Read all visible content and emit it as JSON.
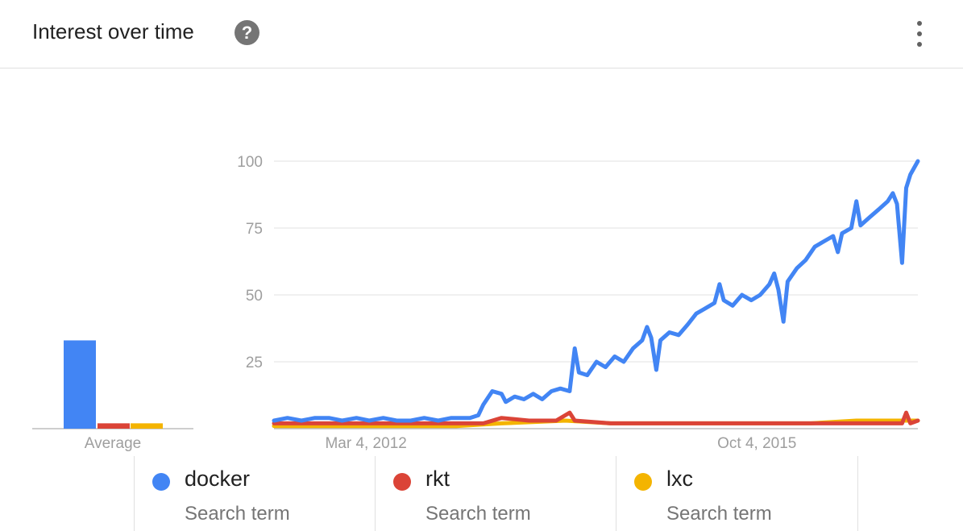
{
  "header": {
    "title": "Interest over time",
    "help_label": "?"
  },
  "colors": {
    "docker": "#4285f4",
    "rkt": "#db4437",
    "lxc": "#f4b400",
    "gridline": "#e0e0e0",
    "tick_text": "#9e9e9e"
  },
  "icons": {
    "help": "help-icon",
    "more": "more-vert-icon"
  },
  "legend": [
    {
      "name": "docker",
      "subtitle": "Search term",
      "color": "#4285f4"
    },
    {
      "name": "rkt",
      "subtitle": "Search term",
      "color": "#db4437"
    },
    {
      "name": "lxc",
      "subtitle": "Search term",
      "color": "#f4b400"
    }
  ],
  "chart_data": [
    {
      "type": "bar",
      "xlabel": "Average",
      "categories": [
        "docker",
        "rkt",
        "lxc"
      ],
      "values": [
        33,
        2,
        2
      ]
    },
    {
      "type": "line",
      "x_range": [
        "2011-05-01",
        "2017-03-26"
      ],
      "x_tick_labels": [
        "Mar 4, 2012",
        "Oct 4, 2015"
      ],
      "x_tick_dates": [
        "2012-03-04",
        "2015-10-04"
      ],
      "ylim": [
        0,
        100
      ],
      "y_ticks": [
        25,
        50,
        75,
        100
      ],
      "grid": true,
      "series": [
        {
          "name": "docker",
          "points": [
            [
              "2011-05-01",
              3
            ],
            [
              "2011-06-15",
              4
            ],
            [
              "2011-08-01",
              3
            ],
            [
              "2011-09-15",
              4
            ],
            [
              "2011-11-01",
              4
            ],
            [
              "2011-12-15",
              3
            ],
            [
              "2012-02-01",
              4
            ],
            [
              "2012-03-15",
              3
            ],
            [
              "2012-05-01",
              4
            ],
            [
              "2012-06-15",
              3
            ],
            [
              "2012-08-01",
              3
            ],
            [
              "2012-09-15",
              4
            ],
            [
              "2012-11-01",
              3
            ],
            [
              "2012-12-15",
              4
            ],
            [
              "2013-01-15",
              4
            ],
            [
              "2013-02-15",
              4
            ],
            [
              "2013-03-15",
              5
            ],
            [
              "2013-04-01",
              9
            ],
            [
              "2013-05-01",
              14
            ],
            [
              "2013-06-01",
              13
            ],
            [
              "2013-06-15",
              10
            ],
            [
              "2013-07-15",
              12
            ],
            [
              "2013-08-15",
              11
            ],
            [
              "2013-09-15",
              13
            ],
            [
              "2013-10-15",
              11
            ],
            [
              "2013-11-15",
              14
            ],
            [
              "2013-12-15",
              15
            ],
            [
              "2014-01-15",
              14
            ],
            [
              "2014-02-01",
              30
            ],
            [
              "2014-02-15",
              21
            ],
            [
              "2014-03-15",
              20
            ],
            [
              "2014-04-15",
              25
            ],
            [
              "2014-05-15",
              23
            ],
            [
              "2014-06-15",
              27
            ],
            [
              "2014-07-15",
              25
            ],
            [
              "2014-08-15",
              30
            ],
            [
              "2014-09-15",
              33
            ],
            [
              "2014-10-01",
              38
            ],
            [
              "2014-10-15",
              34
            ],
            [
              "2014-11-01",
              22
            ],
            [
              "2014-11-15",
              33
            ],
            [
              "2014-12-15",
              36
            ],
            [
              "2015-01-15",
              35
            ],
            [
              "2015-02-15",
              39
            ],
            [
              "2015-03-15",
              43
            ],
            [
              "2015-04-15",
              45
            ],
            [
              "2015-05-15",
              47
            ],
            [
              "2015-06-01",
              54
            ],
            [
              "2015-06-15",
              48
            ],
            [
              "2015-07-15",
              46
            ],
            [
              "2015-08-15",
              50
            ],
            [
              "2015-09-15",
              48
            ],
            [
              "2015-10-15",
              50
            ],
            [
              "2015-11-15",
              54
            ],
            [
              "2015-12-01",
              58
            ],
            [
              "2015-12-15",
              52
            ],
            [
              "2016-01-01",
              40
            ],
            [
              "2016-01-15",
              55
            ],
            [
              "2016-02-15",
              60
            ],
            [
              "2016-03-15",
              63
            ],
            [
              "2016-04-15",
              68
            ],
            [
              "2016-05-15",
              70
            ],
            [
              "2016-06-15",
              72
            ],
            [
              "2016-07-01",
              66
            ],
            [
              "2016-07-15",
              73
            ],
            [
              "2016-08-15",
              75
            ],
            [
              "2016-09-01",
              85
            ],
            [
              "2016-09-15",
              76
            ],
            [
              "2016-10-15",
              79
            ],
            [
              "2016-11-15",
              82
            ],
            [
              "2016-12-15",
              85
            ],
            [
              "2017-01-01",
              88
            ],
            [
              "2017-01-15",
              84
            ],
            [
              "2017-02-01",
              62
            ],
            [
              "2017-02-15",
              90
            ],
            [
              "2017-03-01",
              95
            ],
            [
              "2017-03-26",
              100
            ]
          ]
        },
        {
          "name": "rkt",
          "points": [
            [
              "2011-05-01",
              2
            ],
            [
              "2012-06-01",
              2
            ],
            [
              "2013-04-01",
              2
            ],
            [
              "2013-06-01",
              4
            ],
            [
              "2013-09-01",
              3
            ],
            [
              "2013-12-01",
              3
            ],
            [
              "2014-01-15",
              6
            ],
            [
              "2014-02-01",
              3
            ],
            [
              "2014-06-01",
              2
            ],
            [
              "2015-01-01",
              2
            ],
            [
              "2016-01-01",
              2
            ],
            [
              "2016-09-01",
              2
            ],
            [
              "2017-02-01",
              2
            ],
            [
              "2017-02-15",
              6
            ],
            [
              "2017-03-01",
              2
            ],
            [
              "2017-03-26",
              3
            ]
          ]
        },
        {
          "name": "lxc",
          "points": [
            [
              "2011-05-01",
              1
            ],
            [
              "2012-03-01",
              1
            ],
            [
              "2013-01-01",
              1
            ],
            [
              "2013-06-01",
              2
            ],
            [
              "2014-01-01",
              3
            ],
            [
              "2014-06-01",
              2
            ],
            [
              "2015-03-01",
              2
            ],
            [
              "2015-10-01",
              2
            ],
            [
              "2016-04-01",
              2
            ],
            [
              "2016-09-01",
              3
            ],
            [
              "2017-01-01",
              3
            ],
            [
              "2017-03-26",
              3
            ]
          ]
        }
      ]
    }
  ]
}
